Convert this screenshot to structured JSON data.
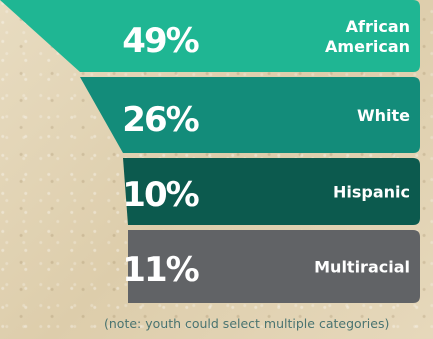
{
  "chart_data": {
    "type": "funnel",
    "categories": [
      "African American",
      "White",
      "Hispanic",
      "Multiracial"
    ],
    "values": [
      49,
      26,
      10,
      11
    ],
    "value_labels": [
      "49%",
      "26%",
      "10%",
      "11%"
    ],
    "label_lines": [
      [
        "African",
        "American"
      ],
      [
        "White"
      ],
      [
        "Hispanic"
      ],
      [
        "Multiracial"
      ]
    ],
    "colors": [
      "#1fb693",
      "#138c7a",
      "#0c5a4e",
      "#616366"
    ],
    "title": "",
    "note": "(note: youth could select multiple categories)"
  }
}
